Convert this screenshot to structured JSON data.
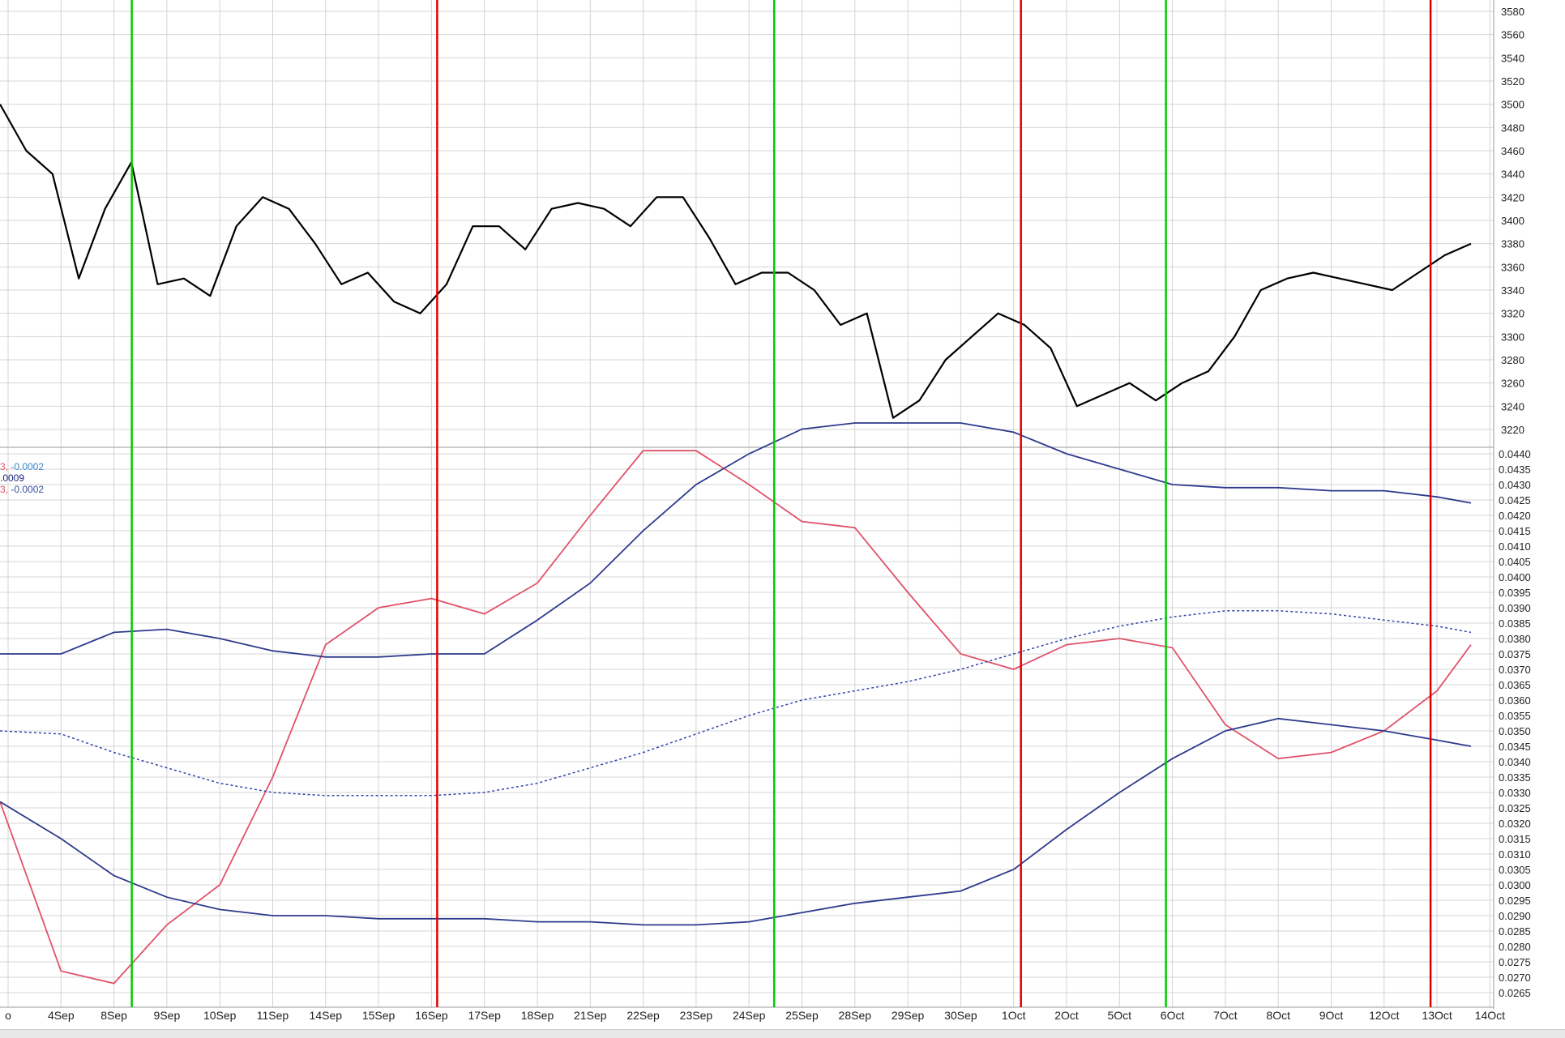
{
  "colors": {
    "price": "#000000",
    "band": "#2e3a8c",
    "mid": "#3344aa",
    "osc": "#e0526a",
    "buy_line": "#00cc00",
    "sell_line": "#e00000",
    "grid": "#d4d4d4"
  },
  "legend": {
    "line1_prefix": "3, ",
    "line1_value": "-0.0002",
    "line2": ".0009",
    "line3_prefix": "3, ",
    "line3_value": "-0.0002"
  },
  "chart_data": [
    {
      "type": "line",
      "panel": "price",
      "yticks": [
        "3580",
        "3560",
        "3540",
        "3520",
        "3500",
        "3480",
        "3460",
        "3440",
        "3420",
        "3400",
        "3380",
        "3360",
        "3340",
        "3320",
        "3300",
        "3280",
        "3260",
        "3240",
        "3220"
      ],
      "ylim": [
        3210,
        3590
      ],
      "x": [
        0,
        1,
        2,
        3,
        4,
        5,
        6,
        7,
        8,
        9,
        10,
        11,
        12,
        13,
        14,
        15,
        16,
        17,
        18,
        19,
        20,
        21,
        22,
        23,
        24,
        25,
        26,
        27,
        28,
        29,
        30,
        31,
        32,
        33,
        34,
        35,
        36,
        37,
        38,
        39,
        40,
        41,
        42,
        43,
        44,
        45,
        46,
        47,
        48,
        49,
        50,
        51,
        52,
        53,
        54,
        55,
        56
      ],
      "series": [
        {
          "values": [
            3500,
            3460,
            3440,
            3350,
            3410,
            3450,
            3345,
            3350,
            3335,
            3395,
            3420,
            3410,
            3380,
            3345,
            3355,
            3330,
            3320,
            3345,
            3395,
            3395,
            3375,
            3410,
            3415,
            3410,
            3395,
            3420,
            3420,
            3385,
            3345,
            3355,
            3355,
            3340,
            3310,
            3320,
            3230,
            3245,
            3280,
            3300,
            3320,
            3310,
            3290,
            3240,
            3250,
            3260,
            3245,
            3260,
            3270,
            3300,
            3340,
            3350,
            3355,
            3350,
            3345,
            3340,
            3355,
            3370,
            3380
          ]
        }
      ]
    },
    {
      "type": "line",
      "panel": "indicator",
      "yticks": [
        "0.0440",
        "0.0435",
        "0.0430",
        "0.0425",
        "0.0420",
        "0.0415",
        "0.0410",
        "0.0405",
        "0.0400",
        "0.0395",
        "0.0390",
        "0.0385",
        "0.0380",
        "0.0375",
        "0.0370",
        "0.0365",
        "0.0360",
        "0.0355",
        "0.0350",
        "0.0345",
        "0.0340",
        "0.0335",
        "0.0330",
        "0.0325",
        "0.0320",
        "0.0315",
        "0.0310",
        "0.0305",
        "0.0300",
        "0.0295",
        "0.0290",
        "0.0285",
        "0.0280",
        "0.0275",
        "0.0270",
        "0.0265"
      ],
      "ylim": [
        0.0262,
        0.0443
      ],
      "x": [
        0,
        1,
        2,
        3,
        4,
        5,
        6,
        7,
        8,
        9,
        10,
        11,
        12,
        13,
        14,
        15,
        16,
        17,
        18,
        19,
        20,
        21,
        22,
        23,
        24,
        25,
        26,
        27,
        28
      ],
      "series": [
        {
          "values": [
            0.0327,
            0.0272,
            0.0268,
            0.0287,
            0.03,
            0.0335,
            0.0378,
            0.039,
            0.0393,
            0.0388,
            0.0398,
            0.042,
            0.0441,
            0.0441,
            0.043,
            0.0418,
            0.0416,
            0.0395,
            0.0375,
            0.037,
            0.0378,
            0.038,
            0.0377,
            0.0352,
            0.0341,
            0.0343,
            0.035,
            0.0363,
            0.0378
          ]
        },
        {
          "values": [
            0.0375,
            0.0375,
            0.0382,
            0.0383,
            0.038,
            0.0376,
            0.0374,
            0.0374,
            0.0375,
            0.0375,
            0.0386,
            0.0398,
            0.0415,
            0.043,
            0.044,
            0.0448,
            0.045,
            0.045,
            0.045,
            0.0447,
            0.044,
            0.0435,
            0.043,
            0.0429,
            0.0429,
            0.0428,
            0.0428,
            0.0426,
            0.0424
          ]
        },
        {
          "values": [
            0.035,
            0.0349,
            0.0343,
            0.0338,
            0.0333,
            0.033,
            0.0329,
            0.0329,
            0.0329,
            0.033,
            0.0333,
            0.0338,
            0.0343,
            0.0349,
            0.0355,
            0.036,
            0.0363,
            0.0366,
            0.037,
            0.0375,
            0.038,
            0.0384,
            0.0387,
            0.0389,
            0.0389,
            0.0388,
            0.0386,
            0.0384,
            0.0382
          ]
        },
        {
          "values": [
            0.0327,
            0.0315,
            0.0303,
            0.0296,
            0.0292,
            0.029,
            0.029,
            0.0289,
            0.0289,
            0.0289,
            0.0288,
            0.0288,
            0.0287,
            0.0287,
            0.0288,
            0.0291,
            0.0294,
            0.0296,
            0.0298,
            0.0305,
            0.0318,
            0.033,
            0.0341,
            0.035,
            0.0354,
            0.0352,
            0.035,
            0.0347,
            0.0345
          ]
        }
      ]
    }
  ],
  "xaxis": {
    "labels": [
      "o",
      "4Sep",
      "8Sep",
      "9Sep",
      "10Sep",
      "11Sep",
      "14Sep",
      "15Sep",
      "16Sep",
      "17Sep",
      "18Sep",
      "21Sep",
      "22Sep",
      "23Sep",
      "24Sep",
      "25Sep",
      "28Sep",
      "29Sep",
      "30Sep",
      "1Oct",
      "2Oct",
      "5Oct",
      "6Oct",
      "7Oct",
      "8Oct",
      "9Oct",
      "12Oct",
      "13Oct",
      "14Oct"
    ]
  },
  "signals": [
    {
      "type": "buy",
      "date": "8Sep"
    },
    {
      "type": "sell",
      "date": "16Sep"
    },
    {
      "type": "buy",
      "date": "24Sep"
    },
    {
      "type": "sell",
      "date": "1Oct"
    },
    {
      "type": "buy",
      "date": "6Oct"
    },
    {
      "type": "sell",
      "date": "13Oct"
    }
  ]
}
